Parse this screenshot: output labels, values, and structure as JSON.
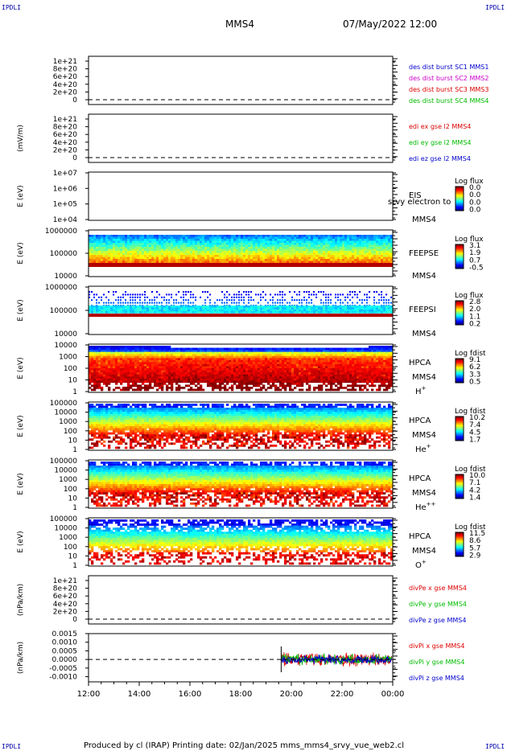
{
  "header": {
    "corner_tl": "IPDLI",
    "corner_tr": "IPDLI",
    "corner_bl": "IPDLI",
    "corner_br": "IPDLI",
    "spacecraft": "MMS4",
    "datetime": "07/May/2022 12:00"
  },
  "footer": {
    "text": "Produced by cl (IRAP)   Printing date: 02/Jan/2025   mms_mms4_srvy_vue_web2.cl"
  },
  "chart_data": [
    {
      "type": "line",
      "panel": "des-burst",
      "xlabel": "",
      "ylabel": "",
      "yticks": [
        "1e+21",
        "8e+20",
        "6e+20",
        "4e+20",
        "2e+20",
        "0"
      ],
      "legend": [
        {
          "label": "des dist burst SC1 MMS1",
          "color": "#0000cc"
        },
        {
          "label": "des dist burst SC2 MMS2",
          "color": "#cc00cc"
        },
        {
          "label": "des dist burst SC3 MMS3",
          "color": "#dd0000"
        },
        {
          "label": "des dist burst SC4 MMS4",
          "color": "#00bb00"
        }
      ],
      "series": []
    },
    {
      "type": "line",
      "panel": "edi-e",
      "ylabel": "(mV/m)",
      "yticks": [
        "1e+21",
        "8e+20",
        "6e+20",
        "4e+20",
        "2e+20",
        "0"
      ],
      "legend": [
        {
          "label": "edi ex gse l2 MMS4",
          "color": "#dd0000"
        },
        {
          "label": "edi ey gse l2 MMS4",
          "color": "#00bb00"
        },
        {
          "label": "edi ez gse l2 MMS4",
          "color": "#0000cc"
        }
      ],
      "series": []
    },
    {
      "type": "heatmap",
      "panel": "eis",
      "ylabel": "E (eV)",
      "yticks": [
        "1e+07",
        "1e+06",
        "1e+05",
        "1e+04"
      ],
      "scale": "log",
      "instrument": "EIS",
      "overlay_text": "srvy electron to",
      "spacecraft": "MMS4",
      "colorbar": {
        "title": "Log flux",
        "ticks": [
          "0.0",
          "0.0",
          "0.0",
          "0.0"
        ]
      }
    },
    {
      "type": "heatmap",
      "panel": "feeps-e",
      "ylabel": "E (eV)",
      "yticks": [
        "1000000",
        "100000",
        "10000"
      ],
      "scale": "log",
      "instrument": "FEEPSE",
      "spacecraft": "MMS4",
      "colorbar": {
        "title": "Log flux",
        "ticks": [
          "3.1",
          "1.9",
          "0.7",
          "-0.5"
        ]
      }
    },
    {
      "type": "heatmap",
      "panel": "feeps-i",
      "ylabel": "E (eV)",
      "yticks": [
        "1000000",
        "100000",
        "10000"
      ],
      "scale": "log",
      "instrument": "FEEPSI",
      "spacecraft": "MMS4",
      "colorbar": {
        "title": "Log flux",
        "ticks": [
          "2.8",
          "2.0",
          "1.1",
          "0.2"
        ]
      }
    },
    {
      "type": "heatmap",
      "panel": "hpca-h",
      "ylabel": "E (eV)",
      "yticks": [
        "10000",
        "1000",
        "100",
        "10",
        "1"
      ],
      "scale": "log",
      "instrument": "HPCA",
      "spacecraft": "MMS4",
      "species": "H+",
      "colorbar": {
        "title": "Log fdist",
        "ticks": [
          "9.1",
          "6.2",
          "3.3",
          "0.5"
        ]
      }
    },
    {
      "type": "heatmap",
      "panel": "hpca-he",
      "ylabel": "E (eV)",
      "yticks": [
        "100000",
        "10000",
        "1000",
        "100",
        "10",
        "1"
      ],
      "scale": "log",
      "instrument": "HPCA",
      "spacecraft": "MMS4",
      "species": "He+",
      "colorbar": {
        "title": "Log fdist",
        "ticks": [
          "10.2",
          "7.4",
          "4.5",
          "1.7"
        ]
      }
    },
    {
      "type": "heatmap",
      "panel": "hpca-he2",
      "ylabel": "E (eV)",
      "yticks": [
        "100000",
        "10000",
        "1000",
        "100",
        "10",
        "1"
      ],
      "scale": "log",
      "instrument": "HPCA",
      "spacecraft": "MMS4",
      "species": "He++",
      "colorbar": {
        "title": "Log fdist",
        "ticks": [
          "10.0",
          "7.1",
          "4.2",
          "1.4"
        ]
      }
    },
    {
      "type": "heatmap",
      "panel": "hpca-o",
      "ylabel": "E (eV)",
      "yticks": [
        "100000",
        "10000",
        "1000",
        "100",
        "10",
        "1"
      ],
      "scale": "log",
      "instrument": "HPCA",
      "spacecraft": "MMS4",
      "species": "O+",
      "colorbar": {
        "title": "Log fdist",
        "ticks": [
          "11.5",
          "8.6",
          "5.7",
          "2.9"
        ]
      }
    },
    {
      "type": "line",
      "panel": "divpe",
      "ylabel": "(nPa/km)",
      "yticks": [
        "1e+21",
        "8e+20",
        "6e+20",
        "4e+20",
        "2e+20",
        "0"
      ],
      "legend": [
        {
          "label": "divPe x gse MMS4",
          "color": "#dd0000"
        },
        {
          "label": "divPe y gse MMS4",
          "color": "#00bb00"
        },
        {
          "label": "divPe z gse MMS4",
          "color": "#0000cc"
        }
      ],
      "series": []
    },
    {
      "type": "line",
      "panel": "divpi",
      "ylabel": "(nPa/km)",
      "yticks": [
        "0.0015",
        "0.0010",
        "0.0005",
        "0.0000",
        "-0.0005",
        "-0.0010"
      ],
      "ylim": [
        -0.0013,
        0.0015
      ],
      "legend": [
        {
          "label": "divPi x gse MMS4",
          "color": "#dd0000"
        },
        {
          "label": "divPi y gse MMS4",
          "color": "#00bb00"
        },
        {
          "label": "divPi z gse MMS4",
          "color": "#0000cc"
        }
      ],
      "series": [
        {
          "name": "divPi x gse MMS4",
          "color": "#dd0000",
          "start_hour": 19.6,
          "amplitude": 0.0004
        },
        {
          "name": "divPi y gse MMS4",
          "color": "#00bb00",
          "start_hour": 19.6,
          "amplitude": 0.0003
        },
        {
          "name": "divPi z gse MMS4",
          "color": "#0000cc",
          "start_hour": 19.6,
          "amplitude": 0.00025
        }
      ]
    }
  ],
  "xaxis": {
    "ticks": [
      "12:00",
      "14:00",
      "16:00",
      "18:00",
      "20:00",
      "22:00",
      "00:00"
    ],
    "range_hours": [
      12,
      24
    ]
  }
}
